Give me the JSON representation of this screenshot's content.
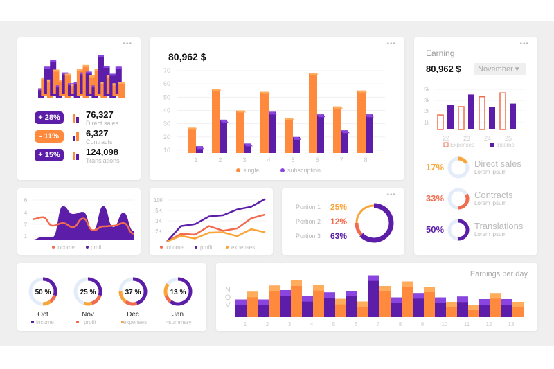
{
  "colors": {
    "purple": "#5c1ea8",
    "purple_light": "#8a45e0",
    "orange": "#ff8a3d",
    "orange_light": "#ffad5c",
    "coral": "#f26b4f",
    "yellow": "#f9a53a",
    "track": "#e4ecfa"
  },
  "summary_card": {
    "stats": [
      {
        "badge": "+ 28%",
        "badge_color": "#5c1ea8",
        "value": "76,327",
        "label": "Direct sales"
      },
      {
        "badge": "- 11%",
        "badge_color": "#ff8a3d",
        "value": "6,327",
        "label": "Contracts"
      },
      {
        "badge": "+ 15%",
        "badge_color": "#5c1ea8",
        "value": "124,098",
        "label": "Translations"
      }
    ]
  },
  "earning_card": {
    "title": "Earning",
    "amount": "80,962 $",
    "month_select": "November",
    "direct": {
      "pct": "17%",
      "label": "Direct sales",
      "sub": "Lorem ipsum"
    },
    "contracts": {
      "pct": "33%",
      "label": "Contracts",
      "sub": "Lorem ipsum"
    },
    "translations": {
      "pct": "50%",
      "label": "Translations",
      "sub": "Lorem ipsum"
    }
  },
  "portion_card": {
    "rows": [
      {
        "label": "Portion 1",
        "pct": "25%"
      },
      {
        "label": "Portion 2",
        "pct": "12%"
      },
      {
        "label": "Portion 3",
        "pct": "63%"
      }
    ]
  },
  "chart_data": [
    {
      "id": "iso_bars",
      "type": "bar",
      "values": [
        3,
        6,
        9,
        6,
        12,
        8,
        4,
        5,
        7,
        8,
        4,
        3,
        5,
        9,
        7,
        11,
        8,
        6,
        4,
        9,
        13,
        5,
        10,
        6,
        8,
        4,
        9,
        5
      ]
    },
    {
      "id": "sales_bar",
      "type": "bar",
      "title": "80,962 $",
      "categories": [
        "1",
        "2",
        "3",
        "4",
        "5",
        "6",
        "7",
        "8"
      ],
      "series": [
        {
          "name": "single",
          "values": [
            27,
            56,
            40,
            54,
            34,
            68,
            43,
            55
          ]
        },
        {
          "name": "subscription",
          "values": [
            13,
            33,
            15,
            39,
            20,
            37,
            25,
            37
          ]
        }
      ],
      "yticks": [
        "10",
        "20",
        "30",
        "40",
        "50",
        "60",
        "70"
      ],
      "ylim": [
        10,
        70
      ]
    },
    {
      "id": "earning_bar",
      "type": "bar",
      "categories": [
        "22",
        "23",
        "24",
        "25"
      ],
      "series": [
        {
          "name": "Expenses",
          "values": [
            1.9,
            3.0,
            4.3,
            4.8
          ]
        },
        {
          "name": "income",
          "values": [
            3.2,
            4.6,
            3.0,
            3.4
          ]
        }
      ],
      "yticks": [
        "5k",
        "3k",
        "2k",
        "1k"
      ]
    },
    {
      "id": "earning_donuts",
      "type": "pie",
      "values": [
        17,
        33,
        50
      ]
    },
    {
      "id": "area_chart",
      "type": "area",
      "yticks": [
        "6",
        "4",
        "2",
        "1"
      ],
      "series": [
        {
          "name": "income",
          "values": [
            3.2,
            3.5,
            2.2,
            2.6,
            2.0,
            3.3,
            1.5,
            2.1,
            2.2,
            2.6,
            1.0
          ]
        },
        {
          "name": "profit",
          "values": [
            0.1,
            0.5,
            0.5,
            5.2,
            4.0,
            4.3,
            1.5,
            5.2,
            2.0,
            4.2,
            1.4
          ]
        }
      ]
    },
    {
      "id": "line_chart",
      "type": "line",
      "yticks": [
        "10K",
        "5K",
        "3K",
        "2K"
      ],
      "series": [
        {
          "name": "income",
          "values": [
            0,
            2,
            1.8,
            4,
            2.8,
            3.4,
            6,
            7
          ]
        },
        {
          "name": "profit",
          "values": [
            0,
            4,
            4.5,
            6.5,
            6.8,
            8.3,
            9,
            11
          ]
        },
        {
          "name": "expenses",
          "values": [
            0,
            1.5,
            0.8,
            2.3,
            2.4,
            1.4,
            3.2,
            2.4
          ]
        }
      ]
    },
    {
      "id": "portion_donut",
      "type": "pie",
      "categories": [
        "Portion 1",
        "Portion 2",
        "Portion 3"
      ],
      "values": [
        25,
        12,
        63
      ]
    },
    {
      "id": "month_donuts",
      "type": "pie",
      "items": [
        {
          "label": "50 %",
          "month": "Oct",
          "segments": [
            30,
            10,
            10
          ]
        },
        {
          "label": "25 %",
          "month": "Nov",
          "segments": [
            30,
            15,
            10
          ]
        },
        {
          "label": "37 %",
          "month": "Dec",
          "segments": [
            45,
            15,
            15
          ]
        },
        {
          "label": "13 %",
          "month": "Jan",
          "segments": [
            60,
            10,
            15
          ]
        }
      ],
      "legend": [
        "income",
        "profit",
        "expenses",
        "summary"
      ]
    },
    {
      "id": "earnings_per_day",
      "type": "bar",
      "title": "Earnings per day",
      "side_label": "NOV",
      "categories": [
        "1",
        "2",
        "3",
        "4",
        "5",
        "6",
        "7",
        "8",
        "9",
        "10",
        "11",
        "12",
        "13"
      ],
      "series": [
        {
          "values": [
            76,
            76,
            117,
            91,
            107,
            114,
            181,
            85,
            104,
            85,
            89,
            78,
            78
          ]
        },
        {
          "values": [
            110,
            137,
            159,
            139,
            79,
            67,
            135,
            154,
            132,
            66,
            54,
            104,
            66
          ]
        }
      ]
    }
  ]
}
